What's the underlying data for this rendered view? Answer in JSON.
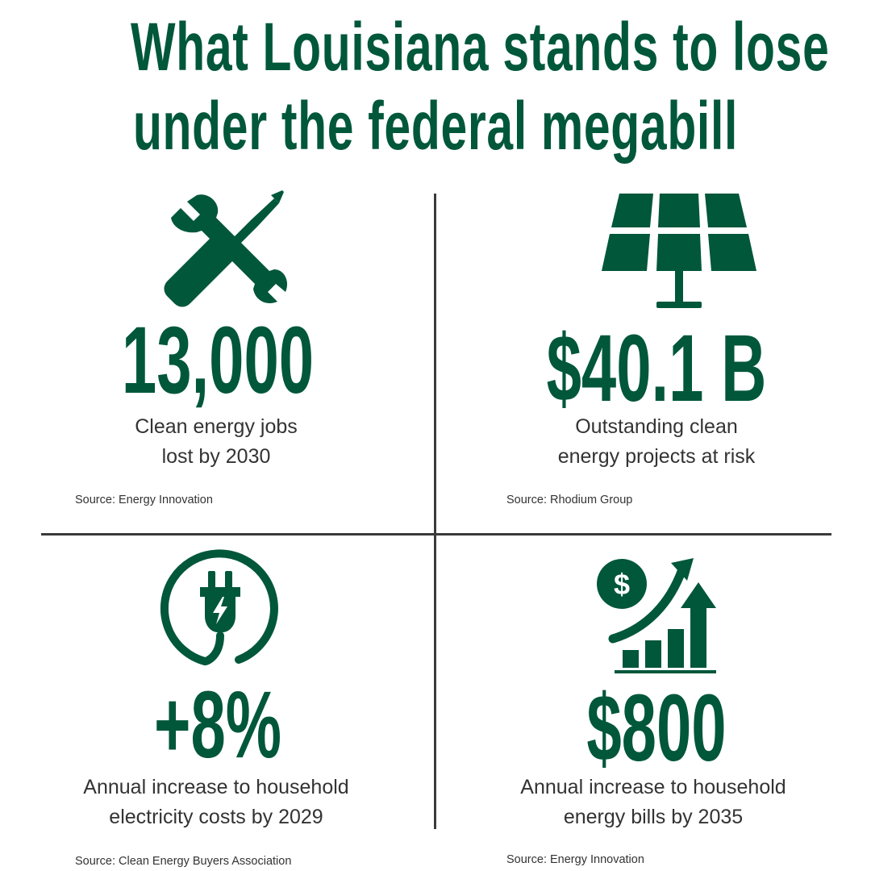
{
  "title": {
    "line1": "What Louisiana stands to lose",
    "line2": "under the federal megabill"
  },
  "colors": {
    "accent": "#00573a",
    "text": "#333333",
    "divider": "#3a3a3a"
  },
  "stats": [
    {
      "icon": "wrench-screwdriver-icon",
      "value": "13,000",
      "desc_line1": "Clean energy jobs",
      "desc_line2": "lost by 2030",
      "source": "Source: Energy Innovation"
    },
    {
      "icon": "solar-panel-icon",
      "value": "$40.1 B",
      "desc_line1": "Outstanding clean",
      "desc_line2": "energy projects at risk",
      "source": "Source: Rhodium Group"
    },
    {
      "icon": "electric-plug-icon",
      "value": "+8%",
      "desc_line1": "Annual increase to household",
      "desc_line2": "electricity costs by 2029",
      "source": "Source: Clean Energy Buyers Association"
    },
    {
      "icon": "rising-cost-chart-icon",
      "value": "$800",
      "desc_line1": "Annual increase to household",
      "desc_line2": "energy bills by 2035",
      "source": "Source: Energy Innovation"
    }
  ]
}
